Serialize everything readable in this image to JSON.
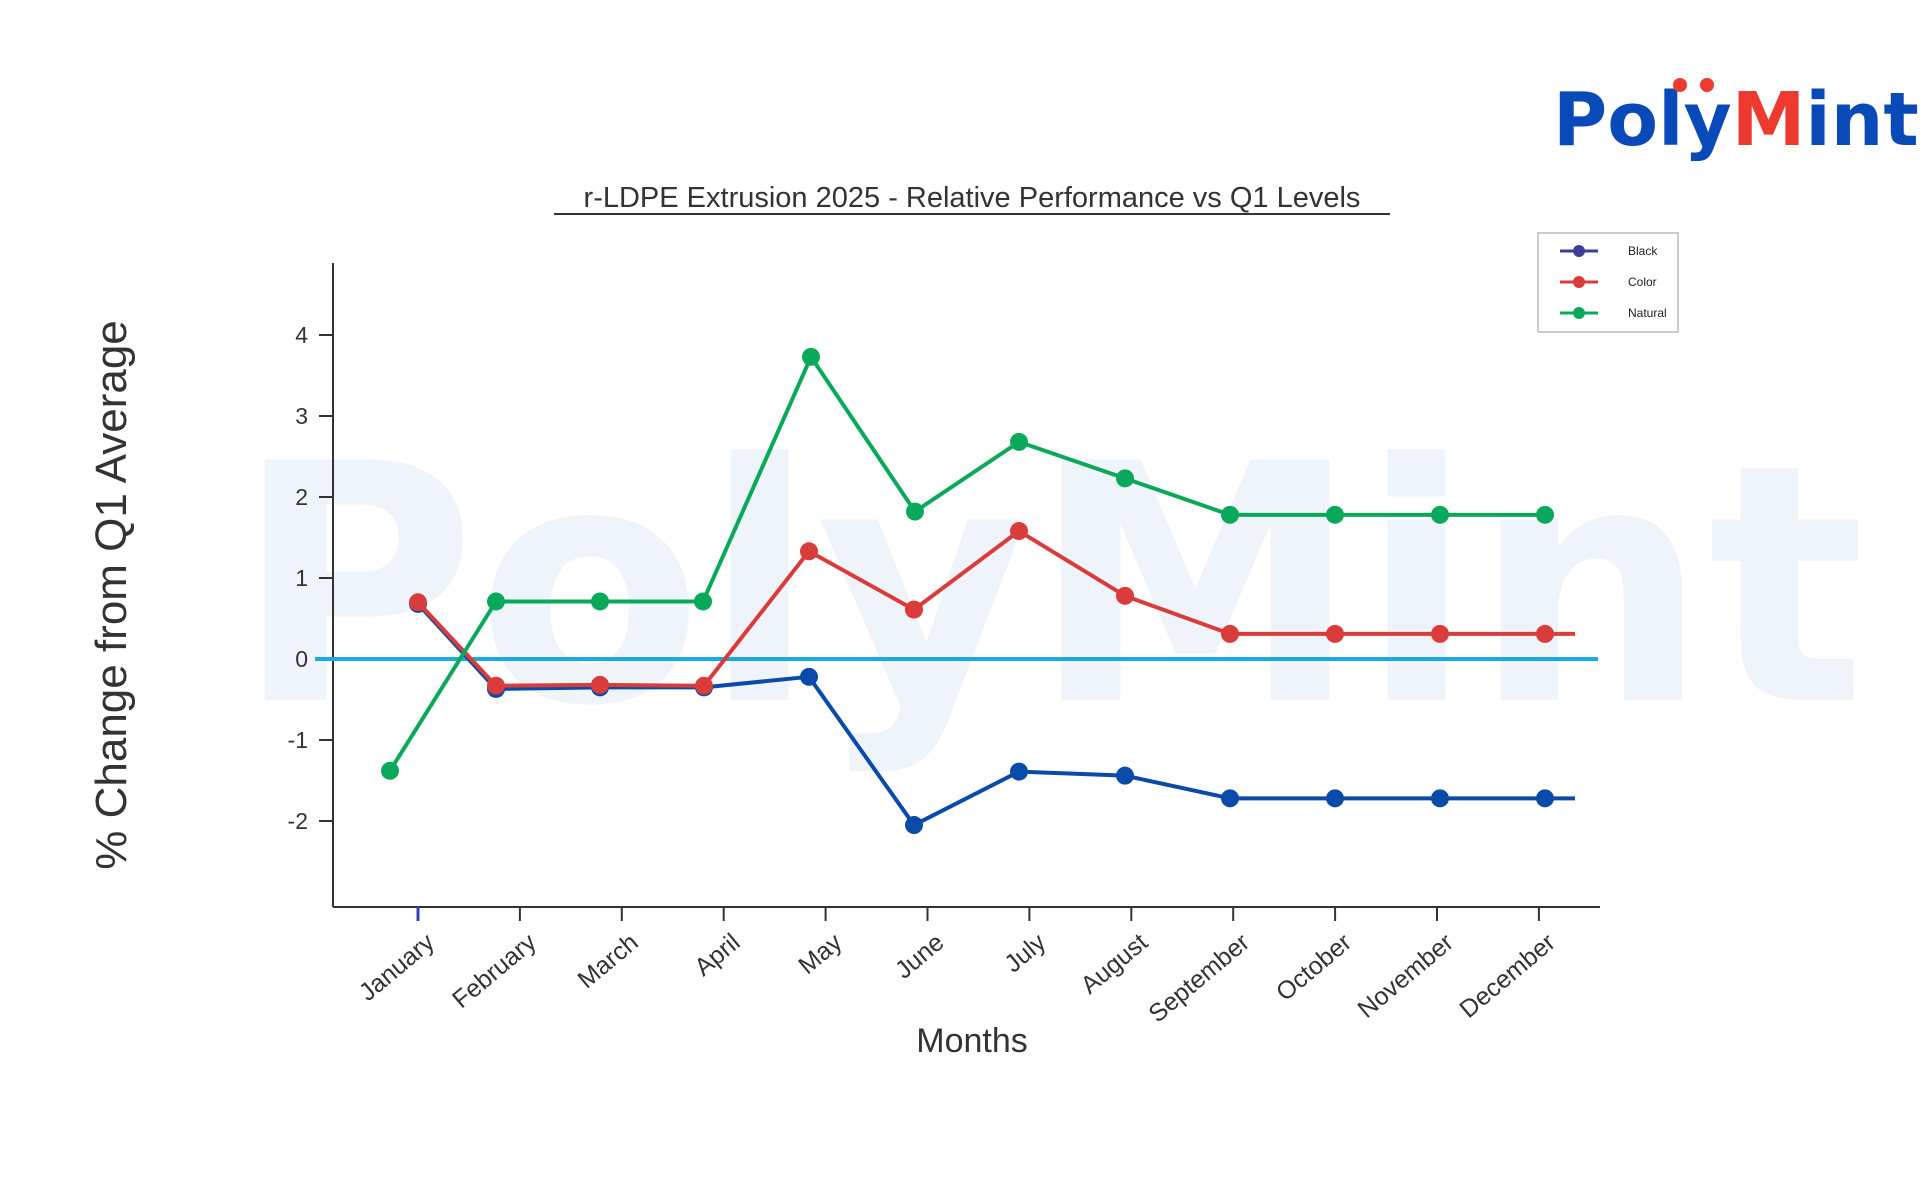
{
  "brand": {
    "logo_part1": "Poly",
    "logo_part2": "M",
    "logo_part3": "int",
    "watermark": "PolyMint",
    "blue": "#0a4ab8",
    "red": "#ec3a30"
  },
  "chart_data": {
    "type": "line",
    "title": "r-LDPE Extrusion 2025 - Relative Performance vs Q1 Levels",
    "xlabel": "Months",
    "ylabel": "% Change from Q1 Average",
    "categories": [
      "January",
      "February",
      "March",
      "April",
      "May",
      "June",
      "July",
      "August",
      "September",
      "October",
      "November",
      "December"
    ],
    "ylim": [
      -3,
      4.9
    ],
    "yticks": [
      -2,
      -1,
      0,
      1,
      2,
      3,
      4
    ],
    "reference_line": {
      "y": 0,
      "color": "#1aa9e0"
    },
    "legend_position": "top-right",
    "grid": false,
    "series": [
      {
        "name": "Black",
        "color": "#0a4aa8",
        "legend_color": "#3b3f96",
        "values": [
          0.68,
          -0.37,
          -0.35,
          -0.35,
          -0.22,
          -2.05,
          -1.39,
          -1.44,
          -1.72,
          -1.72,
          -1.72,
          -1.72
        ]
      },
      {
        "name": "Color",
        "color": "#d93c3a",
        "values": [
          0.7,
          -0.33,
          -0.32,
          -0.33,
          1.33,
          0.61,
          1.58,
          0.78,
          0.31,
          0.31,
          0.31,
          0.31
        ]
      },
      {
        "name": "Natural",
        "color": "#0aa85a",
        "x_offsets": true,
        "values": [
          -1.38,
          0.71,
          0.71,
          0.71,
          3.73,
          1.82,
          2.68,
          2.23,
          1.78,
          1.78,
          1.78,
          1.78
        ]
      }
    ]
  }
}
